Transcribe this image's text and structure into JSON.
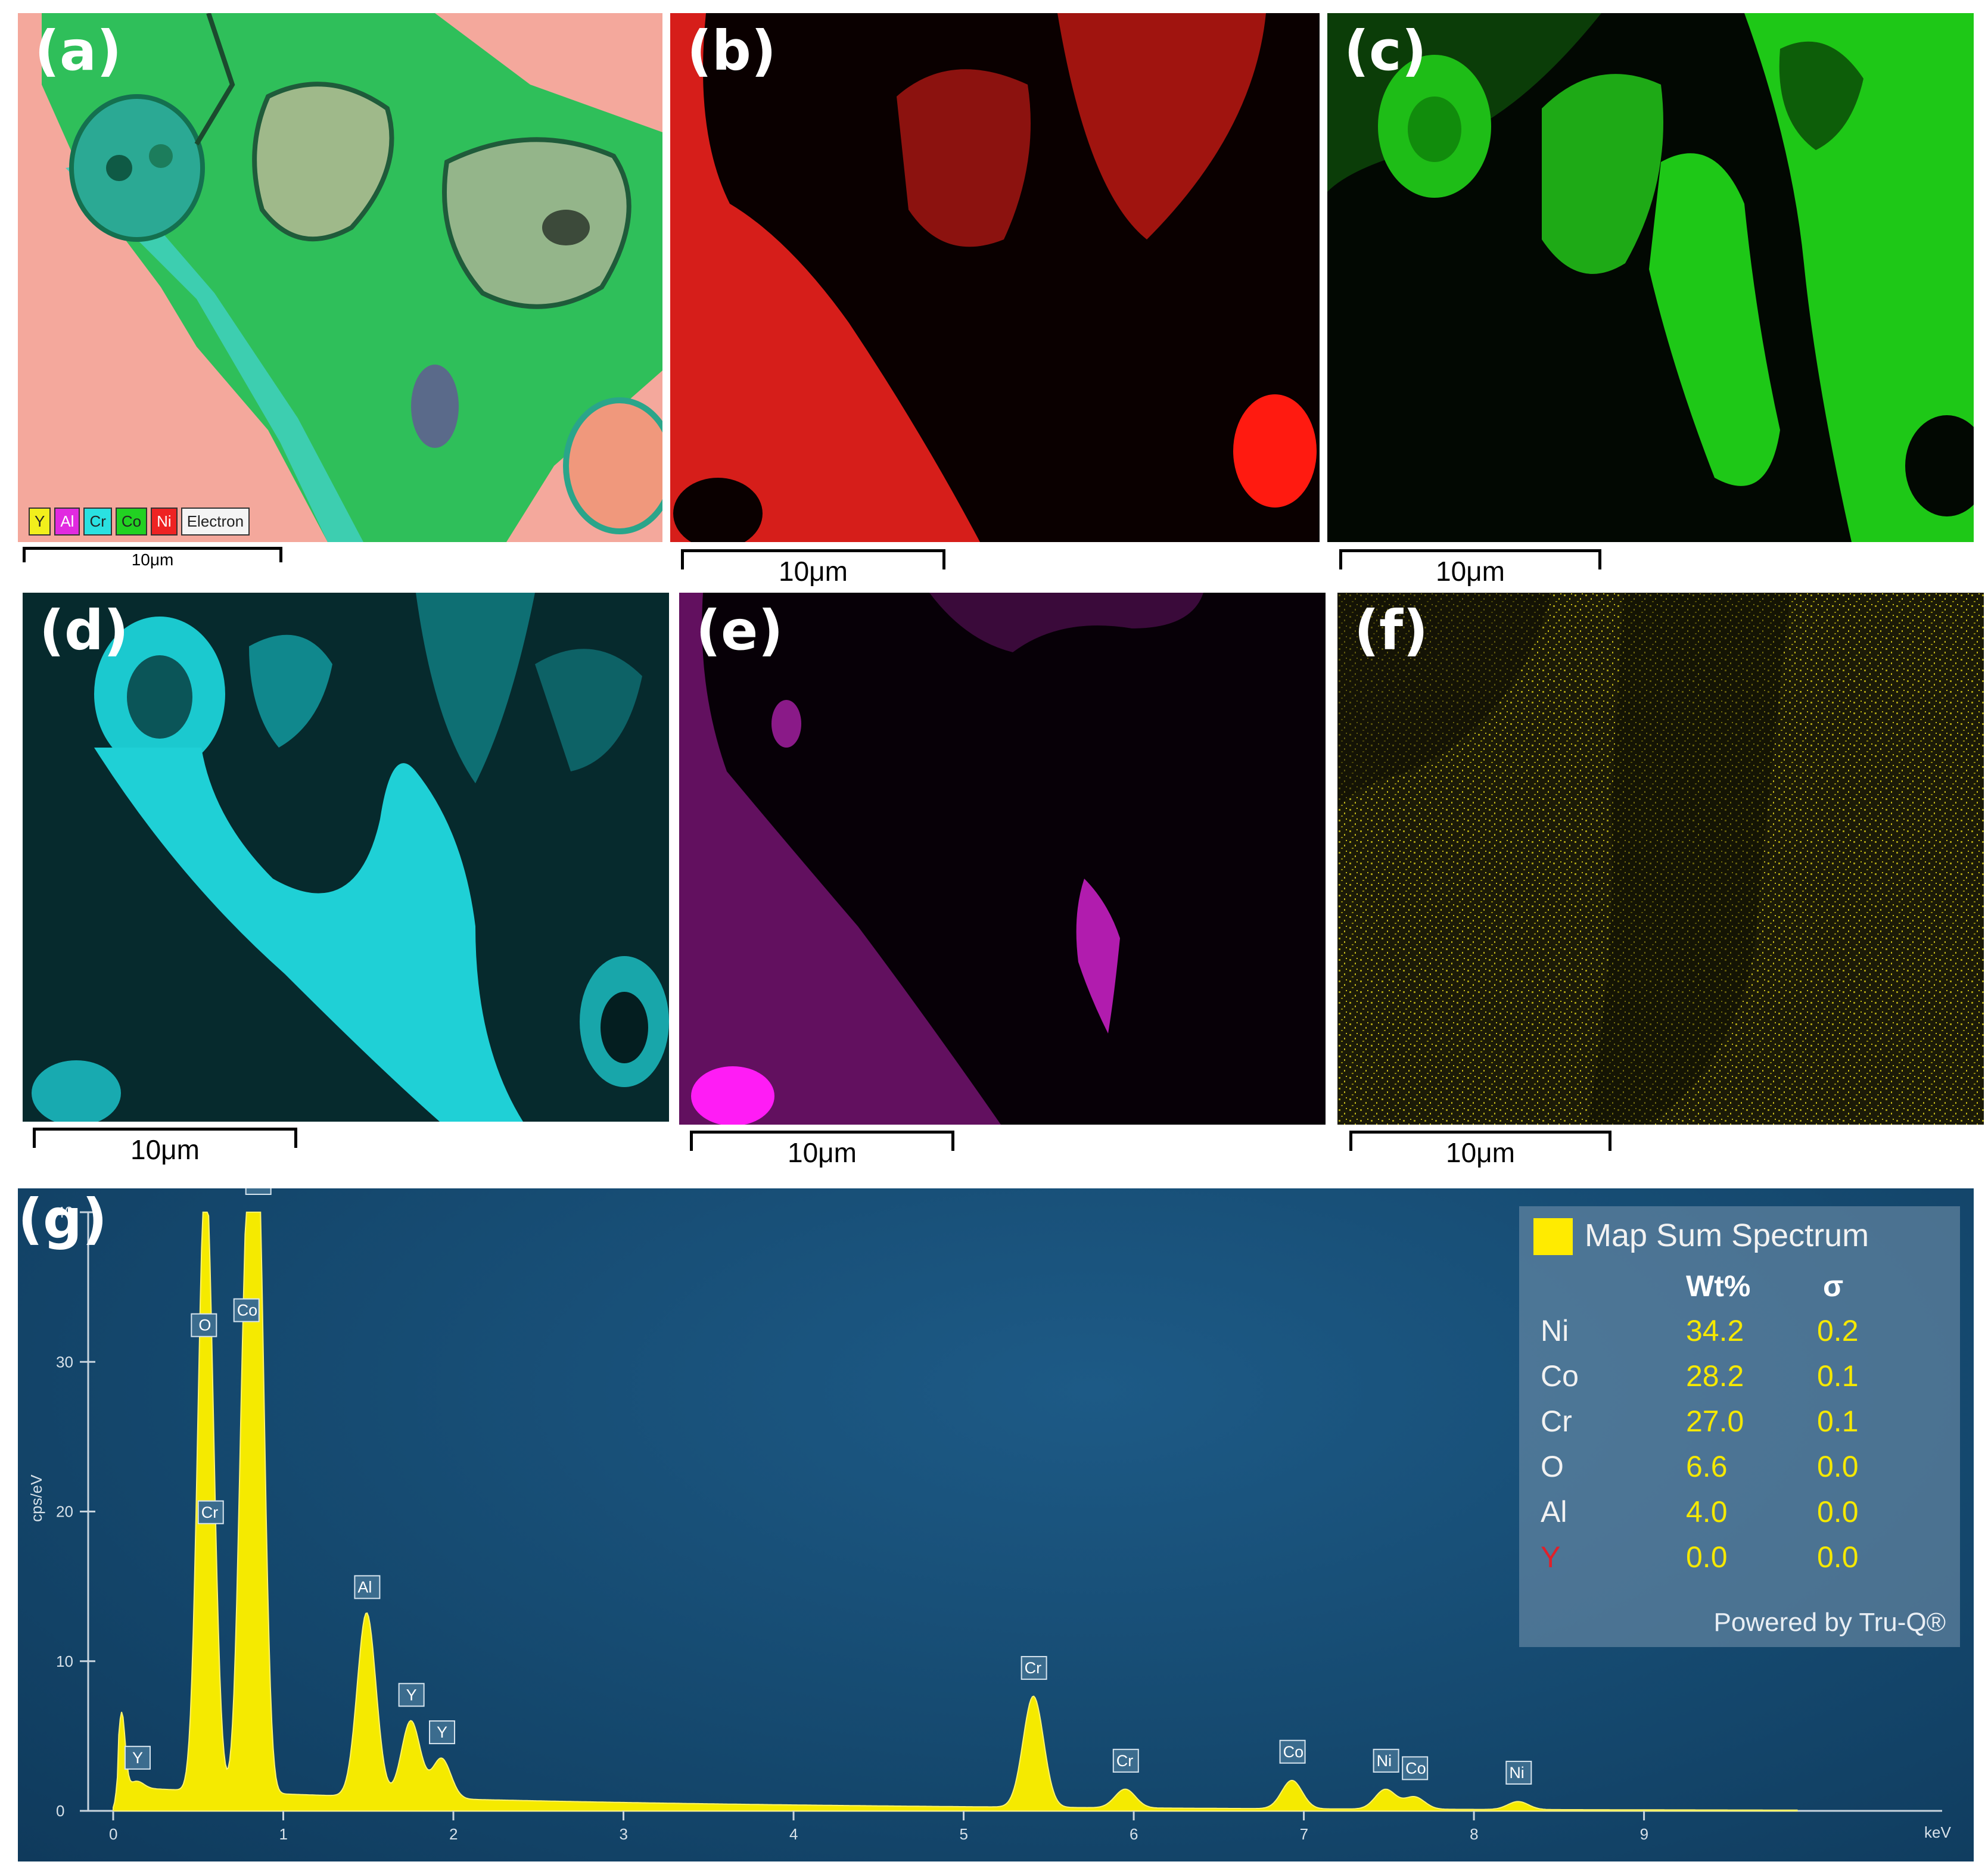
{
  "panels": {
    "a": {
      "label": "(a)",
      "scale": "10μm",
      "legend": [
        {
          "text": "Y",
          "color": "#f2ef1c"
        },
        {
          "text": "Al",
          "color": "#e12ae0"
        },
        {
          "text": "Cr",
          "color": "#2ae1e1"
        },
        {
          "text": "Co",
          "color": "#22d122"
        },
        {
          "text": "Ni",
          "color": "#ee2323"
        },
        {
          "text": "Electron",
          "color": "#f4f4f4"
        }
      ]
    },
    "b": {
      "label": "(b)",
      "scale": "10μm",
      "color": "#e0201c"
    },
    "c": {
      "label": "(c)",
      "scale": "10μm",
      "color": "#22c81a"
    },
    "d": {
      "label": "(d)",
      "scale": "10μm",
      "color": "#21cfd6"
    },
    "e": {
      "label": "(e)",
      "scale": "10μm",
      "color": "#c41ec4"
    },
    "f": {
      "label": "(f)",
      "scale": "10μm",
      "color": "#c9bf18"
    },
    "g": {
      "label": "(g)"
    }
  },
  "chart_data": {
    "type": "area",
    "title": "Map Sum Spectrum",
    "xlabel": "keV",
    "ylabel": "cps/eV",
    "xlim": [
      0,
      10
    ],
    "ylim": [
      0,
      40
    ],
    "x_ticks": [
      "0",
      "1",
      "2",
      "3",
      "4",
      "5",
      "6",
      "7",
      "8",
      "9"
    ],
    "y_ticks": [
      "0",
      "10",
      "20",
      "30",
      "40"
    ],
    "peaks": [
      {
        "label": "Y",
        "x": 0.14,
        "y": 1.6
      },
      {
        "label": "O",
        "x": 0.53,
        "y": 30.5
      },
      {
        "label": "Cr",
        "x": 0.57,
        "y": 18.0
      },
      {
        "label": "Co",
        "x": 0.78,
        "y": 31.5
      },
      {
        "label": "Ni",
        "x": 0.85,
        "y": 40.0
      },
      {
        "label": "Al",
        "x": 1.49,
        "y": 13.0
      },
      {
        "label": "Y",
        "x": 1.75,
        "y": 5.8
      },
      {
        "label": "Y",
        "x": 1.93,
        "y": 3.3
      },
      {
        "label": "Cr",
        "x": 5.41,
        "y": 7.6
      },
      {
        "label": "Cr",
        "x": 5.95,
        "y": 1.4
      },
      {
        "label": "Co",
        "x": 6.93,
        "y": 2.0
      },
      {
        "label": "Ni",
        "x": 7.48,
        "y": 1.4
      },
      {
        "label": "Co",
        "x": 7.65,
        "y": 0.9
      },
      {
        "label": "Ni",
        "x": 8.26,
        "y": 0.6
      }
    ],
    "table": {
      "header": "Map Sum Spectrum",
      "columns": [
        "Wt%",
        "σ"
      ],
      "rows": [
        {
          "element": "Ni",
          "wt": "34.2",
          "sigma": "0.2",
          "color": "#f2f2f2"
        },
        {
          "element": "Co",
          "wt": "28.2",
          "sigma": "0.1",
          "color": "#f2f2f2"
        },
        {
          "element": "Cr",
          "wt": "27.0",
          "sigma": "0.1",
          "color": "#f2f2f2"
        },
        {
          "element": "O",
          "wt": "6.6",
          "sigma": "0.0",
          "color": "#f2f2f2"
        },
        {
          "element": "Al",
          "wt": "4.0",
          "sigma": "0.0",
          "color": "#f2f2f2"
        },
        {
          "element": "Y",
          "wt": "0.0",
          "sigma": "0.0",
          "color": "#e0202a"
        }
      ],
      "footer": "Powered by Tru-Q®"
    }
  }
}
